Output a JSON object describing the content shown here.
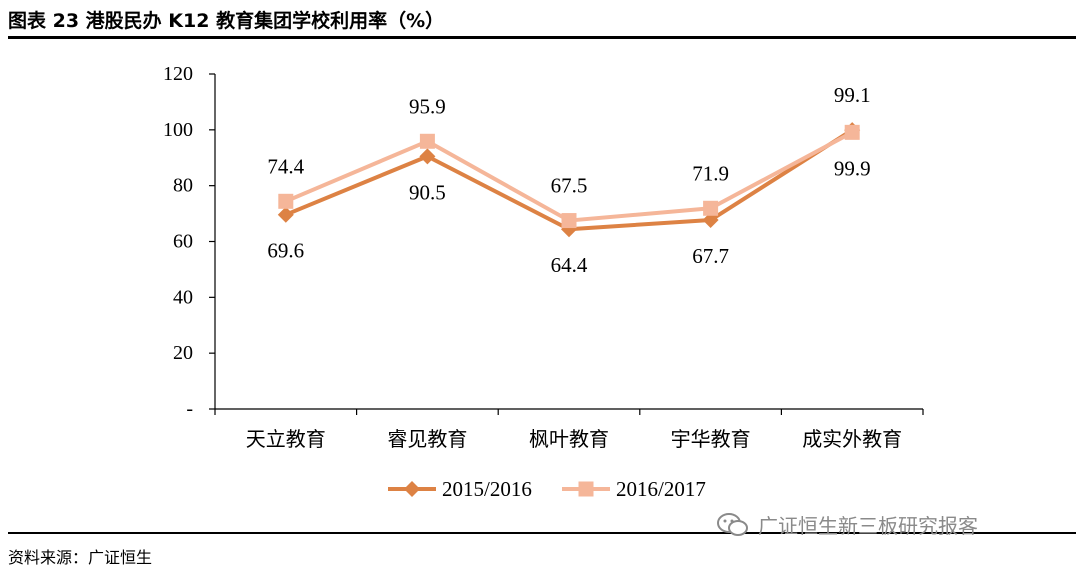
{
  "header": {
    "title": "图表 23 港股民办 K12 教育集团学校利用率（%）"
  },
  "footer": {
    "source": "资料来源：广证恒生"
  },
  "watermark": {
    "text": "广证恒生新三板研究报客",
    "icon": "wechat-icon"
  },
  "colors": {
    "series_2015": "#DD8244",
    "series_2016": "#F5B699",
    "axis": "#000000"
  },
  "chart_data": {
    "type": "line",
    "title": "图表 23 港股民办 K12 教育集团学校利用率（%）",
    "categories": [
      "天立教育",
      "睿见教育",
      "枫叶教育",
      "宇华教育",
      "成实外教育"
    ],
    "series": [
      {
        "name": "2015/2016",
        "values": [
          69.6,
          90.5,
          64.4,
          67.7,
          99.9
        ],
        "marker": "diamond",
        "color": "#DD8244"
      },
      {
        "name": "2016/2017",
        "values": [
          74.4,
          95.9,
          67.5,
          71.9,
          99.1
        ],
        "marker": "square",
        "color": "#F5B699"
      }
    ],
    "ylim": [
      0,
      120
    ],
    "yticks": [
      0,
      20,
      40,
      60,
      80,
      100,
      120
    ],
    "ytick_labels": [
      "-",
      "20",
      "40",
      "60",
      "80",
      "100",
      "120"
    ],
    "xlabel": "",
    "ylabel": "",
    "grid": false,
    "legend": "bottom"
  }
}
